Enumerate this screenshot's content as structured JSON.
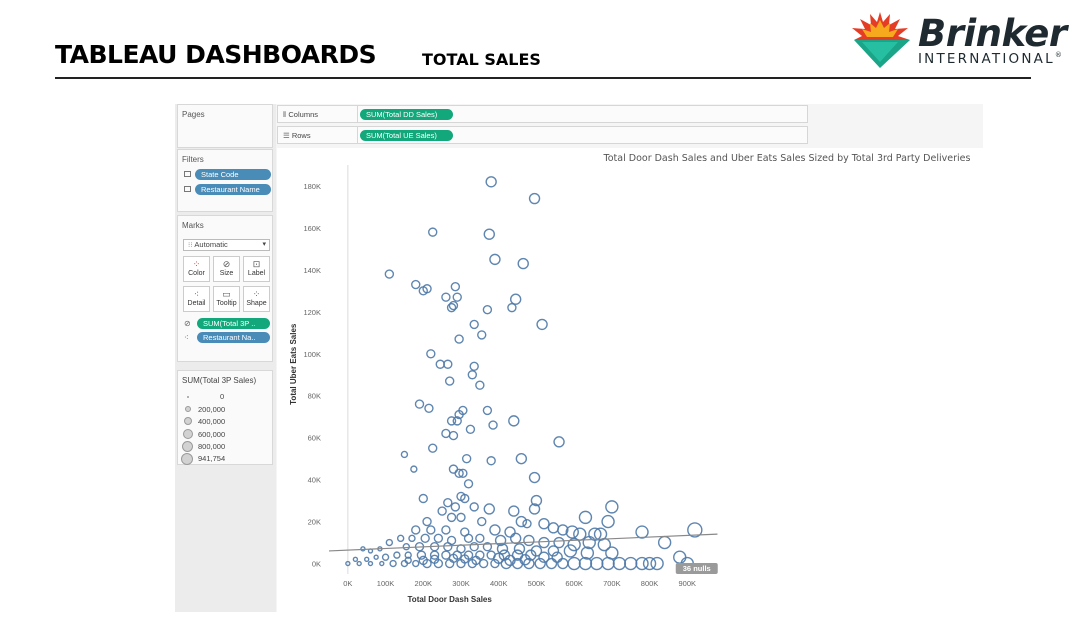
{
  "slide": {
    "title": "TABLEAU DASHBOARDS",
    "subtitle": "TOTAL SALES",
    "logo": {
      "brand": "Brinker",
      "sub": "INTERNATIONAL",
      "mark": "®"
    }
  },
  "tableau": {
    "pages_label": "Pages",
    "filters": {
      "title": "Filters",
      "items": [
        {
          "label": "State Code",
          "icon": "filter-icon"
        },
        {
          "label": "Restaurant Name",
          "icon": "filter-icon"
        }
      ]
    },
    "marks": {
      "title": "Marks",
      "type": "Automatic",
      "cards": [
        {
          "label": "Color",
          "icon": "color-icon"
        },
        {
          "label": "Size",
          "icon": "size-icon"
        },
        {
          "label": "Label",
          "icon": "label-icon"
        },
        {
          "label": "Detail",
          "icon": "detail-icon"
        },
        {
          "label": "Tooltip",
          "icon": "tooltip-icon"
        },
        {
          "label": "Shape",
          "icon": "shape-icon"
        }
      ],
      "pills": [
        {
          "label": "SUM(Total 3P ..",
          "color": "#12a87b"
        },
        {
          "label": "Restaurant Na..",
          "color": "#4a8cb8"
        }
      ]
    },
    "size_legend": {
      "title": "SUM(Total 3P Sales)",
      "items": [
        "0",
        "200,000",
        "400,000",
        "600,000",
        "800,000",
        "941,754"
      ]
    },
    "shelves": {
      "columns_label": "Columns",
      "columns_pill": "SUM(Total DD Sales)",
      "rows_label": "Rows",
      "rows_pill": "SUM(Total UE Sales)"
    },
    "nulls_badge": "36 nulls"
  },
  "chart_data": {
    "type": "scatter",
    "title": "Total Door Dash Sales and Uber Eats Sales Sized by Total 3rd Party Deliveries",
    "xlabel": "Total Door Dash Sales",
    "ylabel": "Total Uber Eats Sales",
    "xlim": [
      -50000,
      1000000
    ],
    "ylim": [
      -5000,
      190000
    ],
    "x_ticks": [
      "0K",
      "100K",
      "200K",
      "300K",
      "400K",
      "500K",
      "600K",
      "700K",
      "800K",
      "900K"
    ],
    "y_ticks": [
      "0K",
      "20K",
      "40K",
      "60K",
      "80K",
      "100K",
      "120K",
      "140K",
      "160K",
      "180K"
    ],
    "mark_color": "#4e79a7",
    "trend_line": [
      [
        -50000,
        6000
      ],
      [
        980000,
        14000
      ]
    ],
    "grid": false,
    "points": [
      [
        380000,
        182000,
        5
      ],
      [
        495000,
        174000,
        5
      ],
      [
        225000,
        158000,
        4
      ],
      [
        375000,
        157000,
        5
      ],
      [
        390000,
        145000,
        5
      ],
      [
        465000,
        143000,
        5
      ],
      [
        110000,
        138000,
        4
      ],
      [
        285000,
        132000,
        4
      ],
      [
        180000,
        133000,
        4
      ],
      [
        210000,
        131000,
        4
      ],
      [
        200000,
        130000,
        4
      ],
      [
        445000,
        126000,
        5
      ],
      [
        260000,
        127000,
        4
      ],
      [
        290000,
        127000,
        4
      ],
      [
        280000,
        123000,
        4
      ],
      [
        275000,
        122000,
        4
      ],
      [
        370000,
        121000,
        4
      ],
      [
        435000,
        122000,
        4
      ],
      [
        515000,
        114000,
        5
      ],
      [
        335000,
        114000,
        4
      ],
      [
        355000,
        109000,
        4
      ],
      [
        295000,
        107000,
        4
      ],
      [
        220000,
        100000,
        4
      ],
      [
        245000,
        95000,
        4
      ],
      [
        265000,
        95000,
        4
      ],
      [
        335000,
        94000,
        4
      ],
      [
        330000,
        90000,
        4
      ],
      [
        350000,
        85000,
        4
      ],
      [
        270000,
        87000,
        4
      ],
      [
        190000,
        76000,
        4
      ],
      [
        215000,
        74000,
        4
      ],
      [
        305000,
        73000,
        4
      ],
      [
        370000,
        73000,
        4
      ],
      [
        295000,
        71000,
        4
      ],
      [
        290000,
        68000,
        4
      ],
      [
        275000,
        68000,
        4
      ],
      [
        385000,
        66000,
        4
      ],
      [
        440000,
        68000,
        5
      ],
      [
        325000,
        64000,
        4
      ],
      [
        260000,
        62000,
        4
      ],
      [
        280000,
        61000,
        4
      ],
      [
        560000,
        58000,
        5
      ],
      [
        225000,
        55000,
        4
      ],
      [
        150000,
        52000,
        3
      ],
      [
        315000,
        50000,
        4
      ],
      [
        380000,
        49000,
        4
      ],
      [
        460000,
        50000,
        5
      ],
      [
        175000,
        45000,
        3
      ],
      [
        280000,
        45000,
        4
      ],
      [
        295000,
        43000,
        4
      ],
      [
        305000,
        43000,
        4
      ],
      [
        495000,
        41000,
        5
      ],
      [
        320000,
        38000,
        4
      ],
      [
        300000,
        32000,
        4
      ],
      [
        310000,
        31000,
        4
      ],
      [
        200000,
        31000,
        4
      ],
      [
        500000,
        30000,
        5
      ],
      [
        265000,
        29000,
        4
      ],
      [
        285000,
        27000,
        4
      ],
      [
        335000,
        27000,
        4
      ],
      [
        375000,
        26000,
        5
      ],
      [
        440000,
        25000,
        5
      ],
      [
        250000,
        25000,
        4
      ],
      [
        495000,
        26000,
        5
      ],
      [
        700000,
        27000,
        6
      ],
      [
        630000,
        22000,
        6
      ],
      [
        690000,
        20000,
        6
      ],
      [
        300000,
        22000,
        4
      ],
      [
        275000,
        22000,
        4
      ],
      [
        210000,
        20000,
        4
      ],
      [
        355000,
        20000,
        4
      ],
      [
        460000,
        20000,
        5
      ],
      [
        475000,
        19000,
        4
      ],
      [
        520000,
        19000,
        5
      ],
      [
        545000,
        17000,
        5
      ],
      [
        570000,
        16000,
        5
      ],
      [
        595000,
        15000,
        6
      ],
      [
        180000,
        16000,
        4
      ],
      [
        220000,
        16000,
        4
      ],
      [
        260000,
        16000,
        4
      ],
      [
        310000,
        15000,
        4
      ],
      [
        390000,
        16000,
        5
      ],
      [
        430000,
        15000,
        5
      ],
      [
        615000,
        14000,
        6
      ],
      [
        655000,
        14000,
        6
      ],
      [
        670000,
        14000,
        6
      ],
      [
        780000,
        15000,
        6
      ],
      [
        920000,
        16000,
        7
      ],
      [
        140000,
        12000,
        3
      ],
      [
        170000,
        12000,
        3
      ],
      [
        205000,
        12000,
        4
      ],
      [
        240000,
        12000,
        4
      ],
      [
        275000,
        11000,
        4
      ],
      [
        320000,
        12000,
        4
      ],
      [
        350000,
        12000,
        4
      ],
      [
        405000,
        11000,
        5
      ],
      [
        445000,
        12000,
        5
      ],
      [
        480000,
        11000,
        5
      ],
      [
        520000,
        10000,
        5
      ],
      [
        560000,
        10000,
        5
      ],
      [
        600000,
        9000,
        6
      ],
      [
        640000,
        10000,
        6
      ],
      [
        680000,
        9000,
        6
      ],
      [
        110000,
        10000,
        3
      ],
      [
        40000,
        7000,
        2
      ],
      [
        60000,
        6000,
        2
      ],
      [
        85000,
        7000,
        2
      ],
      [
        155000,
        8000,
        3
      ],
      [
        190000,
        8000,
        4
      ],
      [
        230000,
        8000,
        4
      ],
      [
        265000,
        8000,
        4
      ],
      [
        300000,
        7000,
        4
      ],
      [
        335000,
        8000,
        4
      ],
      [
        370000,
        8000,
        4
      ],
      [
        410000,
        7000,
        5
      ],
      [
        455000,
        7000,
        5
      ],
      [
        500000,
        6000,
        5
      ],
      [
        545000,
        6000,
        5
      ],
      [
        590000,
        6000,
        6
      ],
      [
        635000,
        5000,
        6
      ],
      [
        700000,
        5000,
        6
      ],
      [
        840000,
        10000,
        6
      ],
      [
        880000,
        3000,
        6
      ],
      [
        20000,
        2000,
        2
      ],
      [
        50000,
        2000,
        2
      ],
      [
        75000,
        3000,
        2
      ],
      [
        100000,
        3000,
        3
      ],
      [
        130000,
        4000,
        3
      ],
      [
        160000,
        4000,
        3
      ],
      [
        195000,
        4000,
        4
      ],
      [
        230000,
        4000,
        4
      ],
      [
        260000,
        4000,
        4
      ],
      [
        290000,
        4000,
        4
      ],
      [
        320000,
        4000,
        4
      ],
      [
        350000,
        4000,
        4
      ],
      [
        380000,
        4000,
        4
      ],
      [
        415000,
        4000,
        5
      ],
      [
        450000,
        4000,
        5
      ],
      [
        485000,
        4000,
        5
      ],
      [
        520000,
        3000,
        5
      ],
      [
        555000,
        3000,
        5
      ],
      [
        0,
        0,
        2
      ],
      [
        30000,
        0,
        2
      ],
      [
        60000,
        0,
        2
      ],
      [
        90000,
        0,
        2
      ],
      [
        120000,
        0,
        3
      ],
      [
        150000,
        0,
        3
      ],
      [
        180000,
        0,
        3
      ],
      [
        210000,
        0,
        4
      ],
      [
        240000,
        0,
        4
      ],
      [
        270000,
        0,
        4
      ],
      [
        300000,
        0,
        4
      ],
      [
        330000,
        0,
        4
      ],
      [
        360000,
        0,
        4
      ],
      [
        390000,
        0,
        4
      ],
      [
        420000,
        0,
        5
      ],
      [
        450000,
        0,
        5
      ],
      [
        480000,
        0,
        5
      ],
      [
        510000,
        0,
        5
      ],
      [
        540000,
        0,
        5
      ],
      [
        570000,
        0,
        5
      ],
      [
        600000,
        0,
        6
      ],
      [
        630000,
        0,
        6
      ],
      [
        660000,
        0,
        6
      ],
      [
        690000,
        0,
        6
      ],
      [
        720000,
        0,
        6
      ],
      [
        750000,
        0,
        6
      ],
      [
        780000,
        0,
        6
      ],
      [
        800000,
        0,
        6
      ],
      [
        820000,
        0,
        6
      ],
      [
        900000,
        0,
        6
      ],
      [
        160000,
        1500,
        3
      ],
      [
        200000,
        1500,
        4
      ],
      [
        340000,
        1500,
        4
      ],
      [
        430000,
        1500,
        5
      ],
      [
        280000,
        2500,
        4
      ],
      [
        400000,
        2500,
        5
      ],
      [
        470000,
        1800,
        5
      ],
      [
        230000,
        2000,
        4
      ],
      [
        310000,
        2200,
        4
      ]
    ]
  }
}
